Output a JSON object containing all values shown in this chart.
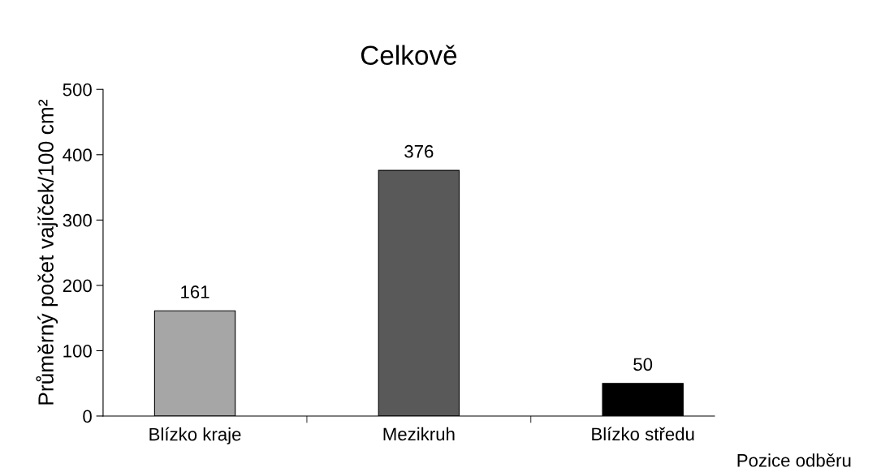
{
  "chart_data": {
    "type": "bar",
    "title": "Celkově",
    "xlabel": "Pozice odběru",
    "ylabel": "Průměrný počet vajíček/100 cm²",
    "categories": [
      "Blízko kraje",
      "Mezikruh",
      "Blízko středu"
    ],
    "values": [
      161,
      376,
      50
    ],
    "colors": [
      "#a6a6a6",
      "#595959",
      "#000000"
    ],
    "ylim": [
      0,
      500
    ],
    "yticks": [
      0,
      100,
      200,
      300,
      400,
      500
    ],
    "data_labels": true,
    "grid": false,
    "legend": false
  }
}
